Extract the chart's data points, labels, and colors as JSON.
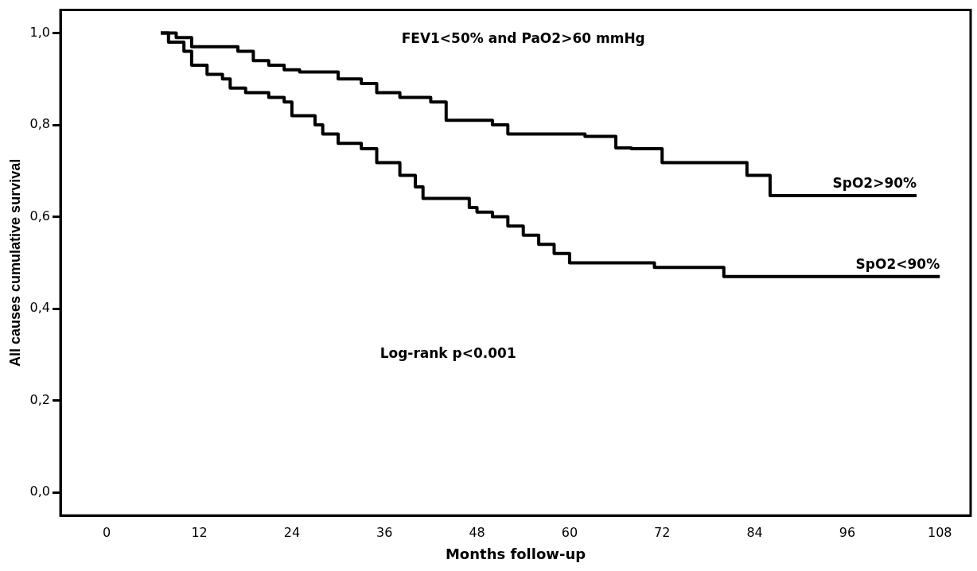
{
  "chart_data": {
    "type": "step",
    "title": "FEV1<50% and PaO2>60 mmHg",
    "xlabel": "Months follow-up",
    "ylabel": "All causes cumulative survival",
    "annotations": [
      "Log-rank p<0.001"
    ],
    "xlim": [
      -6,
      112
    ],
    "xticks": [
      0,
      12,
      24,
      36,
      48,
      60,
      72,
      84,
      96,
      108
    ],
    "ylim": [
      -0.05,
      1.05
    ],
    "yticks": [
      {
        "value": 0,
        "label": "0,0"
      },
      {
        "value": 0.2,
        "label": "0,2"
      },
      {
        "value": 0.4,
        "label": "0,4"
      },
      {
        "value": 0.6,
        "label": "0,6"
      },
      {
        "value": 0.8,
        "label": "0,8"
      },
      {
        "value": 1,
        "label": "1,0"
      }
    ],
    "grid": false,
    "legend": false,
    "marker": "none",
    "line_style": "solid",
    "series": [
      {
        "name": "SpO2>90%",
        "color": "#000000",
        "x": [
          7,
          9,
          11,
          17,
          19,
          21,
          23,
          25,
          30,
          33,
          35,
          38,
          42,
          44,
          50,
          52,
          62,
          66,
          68,
          72,
          83,
          86,
          105
        ],
        "values": [
          1,
          0.99,
          0.97,
          0.96,
          0.94,
          0.93,
          0.92,
          0.915,
          0.9,
          0.89,
          0.87,
          0.86,
          0.85,
          0.81,
          0.8,
          0.78,
          0.775,
          0.75,
          0.748,
          0.718,
          0.69,
          0.646,
          0.646
        ]
      },
      {
        "name": "SpO2<90%",
        "color": "#000000",
        "x": [
          7,
          8,
          10,
          11,
          13,
          15,
          16,
          18,
          21,
          23,
          24,
          27,
          28,
          30,
          33,
          35,
          38,
          40,
          41,
          47,
          48,
          50,
          52,
          54,
          56,
          58,
          60,
          71,
          80,
          108
        ],
        "values": [
          1,
          0.98,
          0.96,
          0.93,
          0.91,
          0.9,
          0.88,
          0.87,
          0.86,
          0.85,
          0.82,
          0.8,
          0.78,
          0.76,
          0.748,
          0.718,
          0.69,
          0.665,
          0.64,
          0.62,
          0.61,
          0.6,
          0.58,
          0.56,
          0.54,
          0.52,
          0.5,
          0.49,
          0.47,
          0.47
        ]
      }
    ]
  }
}
